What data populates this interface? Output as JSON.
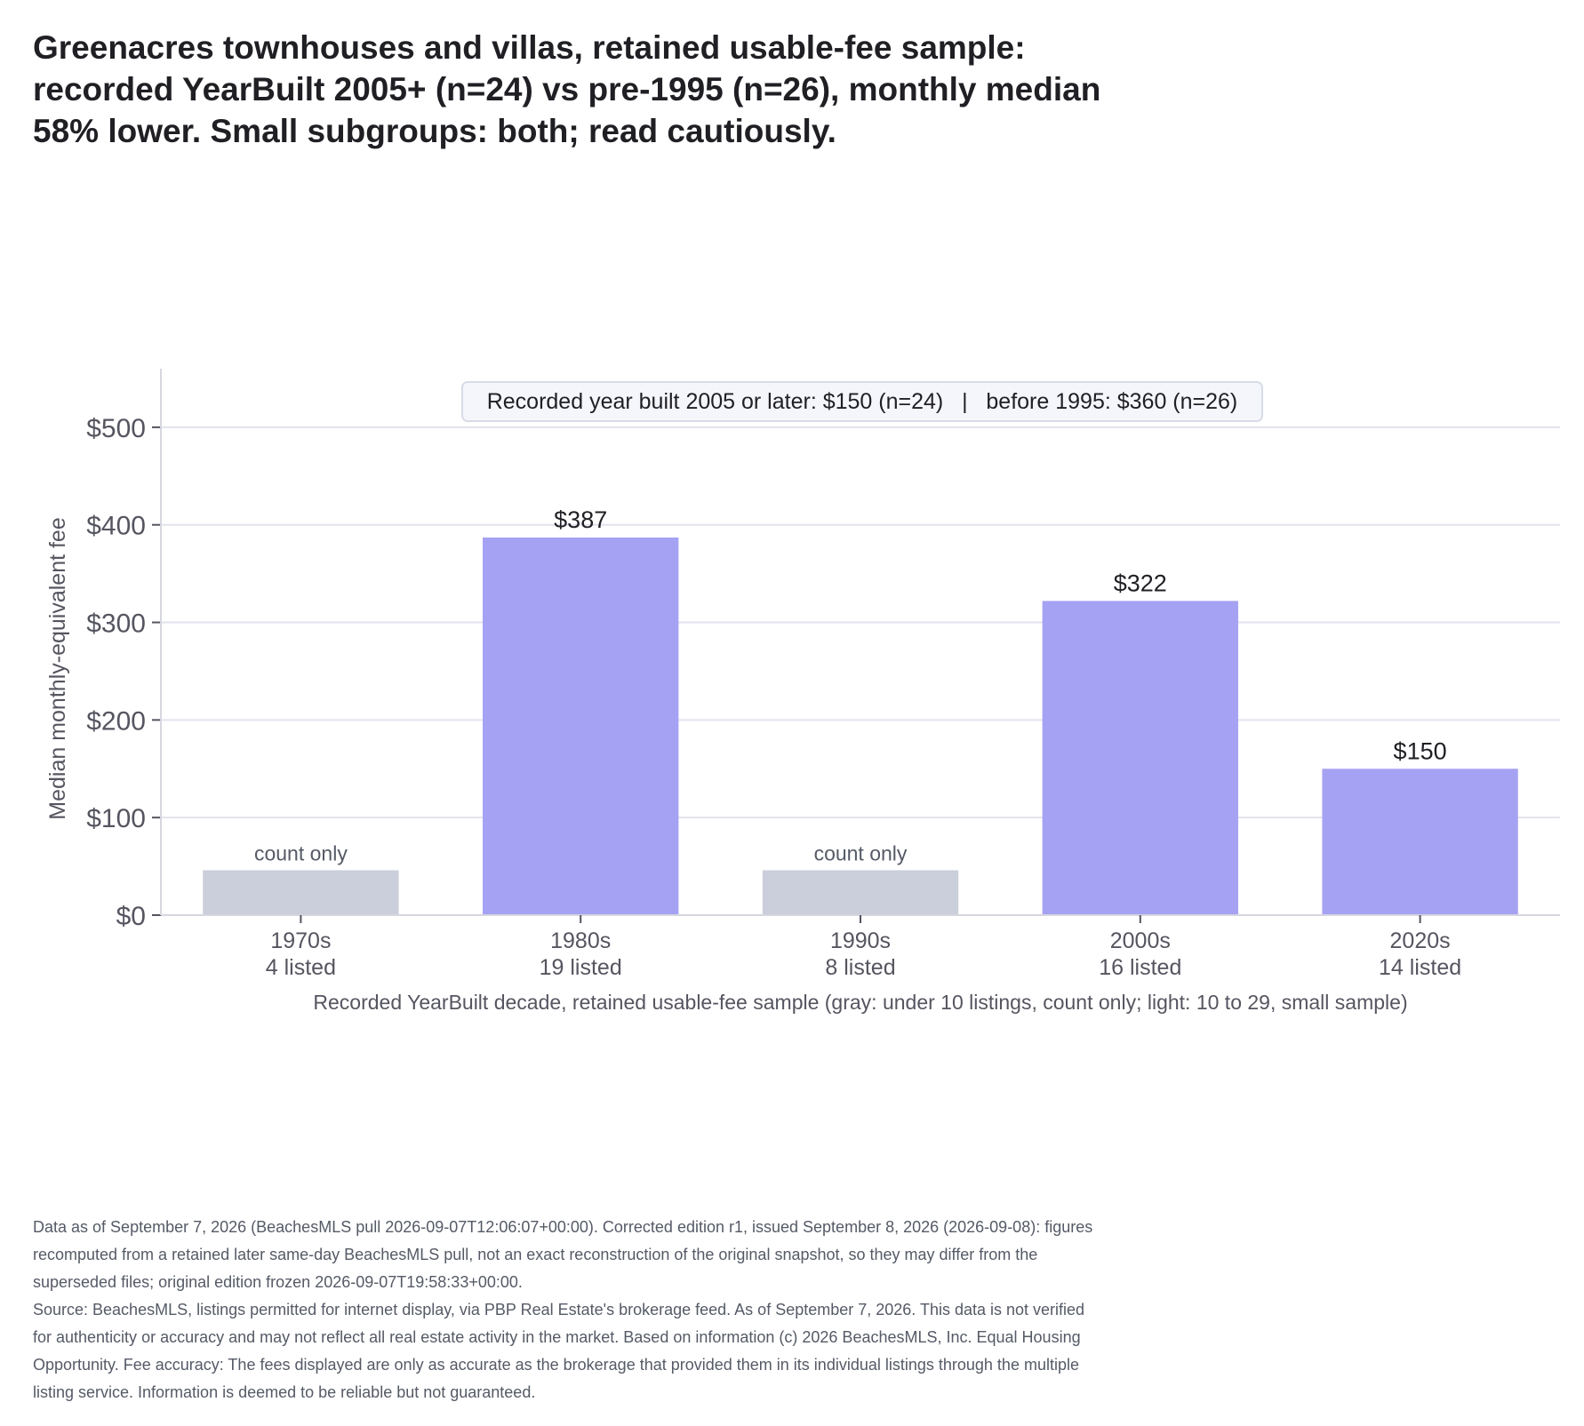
{
  "title_lines": [
    "Greenacres townhouses and villas, retained usable-fee sample:",
    "recorded YearBuilt 2005+ (n=24) vs pre-1995 (n=26), monthly median",
    "58% lower. Small subgroups: both; read cautiously."
  ],
  "colors": {
    "bar_value": "#a6a2f3",
    "bar_count_only": "#cbcedb",
    "grid": "#e3e3ef",
    "axis": "#d6d6e0",
    "legend_box_fill": "#f5f6fb",
    "legend_box_stroke": "#d8dbe8",
    "tick_text": "#555560",
    "label_text": "#1f1f24",
    "count_only_text": "#555a66"
  },
  "chart_data": {
    "type": "bar",
    "ylabel": "Median monthly-equivalent fee",
    "xlabel": "Recorded YearBuilt decade, retained usable-fee sample (gray: under 10 listings, count only; light: 10 to 29, small sample)",
    "ylim": [
      0,
      560
    ],
    "yticks": [
      0,
      100,
      200,
      300,
      400,
      500
    ],
    "ytick_labels": [
      "$0",
      "$100",
      "$200",
      "$300",
      "$400",
      "$500"
    ],
    "grid": true,
    "categories": [
      "1970s",
      "1980s",
      "1990s",
      "2000s",
      "2020s"
    ],
    "category_counts": [
      "4 listed",
      "19 listed",
      "8 listed",
      "16 listed",
      "14 listed"
    ],
    "values": [
      null,
      387,
      null,
      322,
      150
    ],
    "count_only_placeholder_value": 46,
    "bar_labels": [
      "count only",
      "$387",
      "count only",
      "$322",
      "$150"
    ],
    "bar_status": [
      "count_only",
      "value",
      "count_only",
      "value",
      "value"
    ],
    "annotation": "Recorded year built 2005 or later: $150 (n=24)   |   before 1995: $360 (n=26)"
  },
  "footnote": {
    "lines": [
      "Data as of September 7, 2026 (BeachesMLS pull 2026-09-07T12:06:07+00:00). Corrected edition r1, issued September 8, 2026 (2026-09-08): figures",
      "recomputed from a retained later same-day BeachesMLS pull, not an exact reconstruction of the original snapshot, so they may differ from the",
      "superseded files; original edition frozen 2026-09-07T19:58:33+00:00.",
      "Source: BeachesMLS, listings permitted for internet display, via PBP Real Estate's brokerage feed. As of September 7, 2026. This data is not verified",
      "for authenticity or accuracy and may not reflect all real estate activity in the market. Based on information (c) 2026 BeachesMLS, Inc. Equal Housing",
      "Opportunity. Fee accuracy: The fees displayed are only as accurate as the brokerage that provided them in its individual listings through the multiple",
      "listing service. Information is deemed to be reliable but not guaranteed."
    ]
  }
}
